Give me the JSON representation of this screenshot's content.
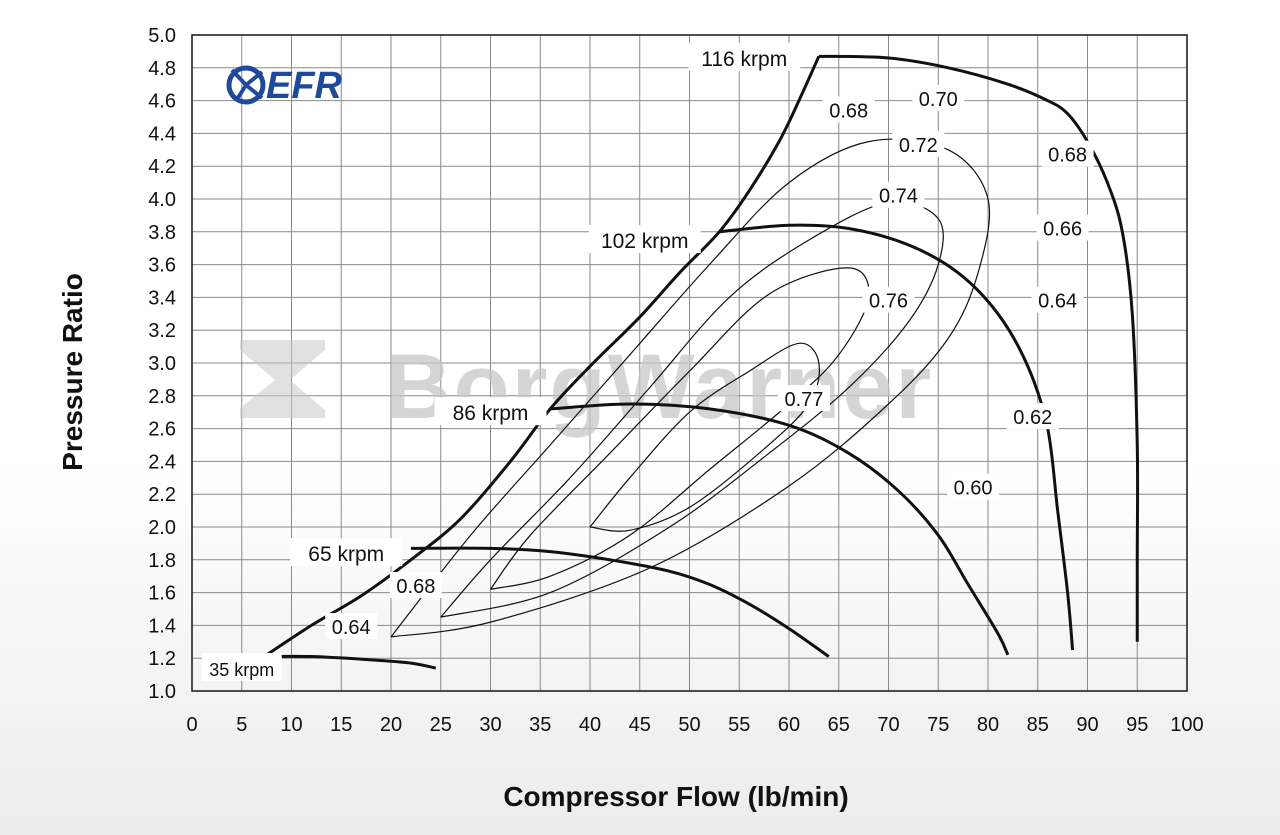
{
  "chart_data": {
    "type": "line",
    "title": "",
    "xlabel": "Compressor Flow (lb/min)",
    "ylabel": "Pressure Ratio",
    "xlim": [
      0,
      100
    ],
    "ylim": [
      1.0,
      5.0
    ],
    "x_ticks": [
      "0",
      "5",
      "10",
      "15",
      "20",
      "25",
      "30",
      "35",
      "40",
      "45",
      "50",
      "55",
      "60",
      "65",
      "70",
      "75",
      "80",
      "85",
      "90",
      "95",
      "100"
    ],
    "y_ticks": [
      "1.0",
      "1.2",
      "1.4",
      "1.6",
      "1.8",
      "2.0",
      "2.2",
      "2.4",
      "2.6",
      "2.8",
      "3.0",
      "3.2",
      "3.4",
      "3.6",
      "3.8",
      "4.0",
      "4.2",
      "4.4",
      "4.6",
      "4.8",
      "5.0"
    ],
    "grid": true,
    "logo": "EFR",
    "watermark": "BorgWarner",
    "surge_line": [
      [
        7,
        1.2
      ],
      [
        12,
        1.4
      ],
      [
        17,
        1.58
      ],
      [
        22,
        1.8
      ],
      [
        27,
        2.05
      ],
      [
        32,
        2.4
      ],
      [
        36,
        2.72
      ],
      [
        40,
        2.98
      ],
      [
        45,
        3.28
      ],
      [
        49,
        3.55
      ],
      [
        53,
        3.8
      ],
      [
        56,
        4.05
      ],
      [
        59,
        4.35
      ],
      [
        61,
        4.6
      ],
      [
        63,
        4.87
      ]
    ],
    "speed_lines": [
      {
        "name": "35 krpm",
        "label": "35 krpm",
        "points": [
          [
            7,
            1.21
          ],
          [
            12,
            1.21
          ],
          [
            18,
            1.19
          ],
          [
            22,
            1.17
          ],
          [
            24.5,
            1.14
          ]
        ]
      },
      {
        "name": "65 krpm",
        "label": "65 krpm",
        "points": [
          [
            22,
            1.87
          ],
          [
            30,
            1.87
          ],
          [
            36,
            1.85
          ],
          [
            42,
            1.8
          ],
          [
            48,
            1.73
          ],
          [
            52,
            1.65
          ],
          [
            56,
            1.53
          ],
          [
            60,
            1.38
          ],
          [
            64,
            1.21
          ]
        ]
      },
      {
        "name": "86 krpm",
        "label": "86 krpm",
        "points": [
          [
            36,
            2.72
          ],
          [
            44,
            2.75
          ],
          [
            52,
            2.72
          ],
          [
            60,
            2.62
          ],
          [
            66,
            2.45
          ],
          [
            71,
            2.22
          ],
          [
            75,
            1.95
          ],
          [
            78,
            1.65
          ],
          [
            81,
            1.35
          ],
          [
            82,
            1.22
          ]
        ]
      },
      {
        "name": "102 krpm",
        "label": "102 krpm",
        "points": [
          [
            53,
            3.8
          ],
          [
            60,
            3.84
          ],
          [
            66,
            3.82
          ],
          [
            72,
            3.72
          ],
          [
            77,
            3.55
          ],
          [
            81,
            3.3
          ],
          [
            84,
            2.98
          ],
          [
            86,
            2.6
          ],
          [
            87,
            2.1
          ],
          [
            88,
            1.6
          ],
          [
            88.5,
            1.25
          ]
        ]
      },
      {
        "name": "116 krpm",
        "label": "116 krpm",
        "points": [
          [
            63,
            4.87
          ],
          [
            70,
            4.86
          ],
          [
            76,
            4.8
          ],
          [
            82,
            4.7
          ],
          [
            86,
            4.6
          ],
          [
            88,
            4.52
          ],
          [
            90,
            4.35
          ],
          [
            92,
            4.1
          ],
          [
            93.5,
            3.8
          ],
          [
            94.5,
            3.3
          ],
          [
            95,
            2.5
          ],
          [
            95,
            1.8
          ],
          [
            95,
            1.3
          ]
        ]
      }
    ],
    "efficiency_islands": [
      {
        "label": "0.77",
        "points": [
          [
            40,
            2.0
          ],
          [
            44,
            2.3
          ],
          [
            50,
            2.7
          ],
          [
            56,
            2.95
          ],
          [
            61,
            3.12
          ],
          [
            63,
            3.0
          ],
          [
            62,
            2.75
          ],
          [
            57,
            2.45
          ],
          [
            50,
            2.12
          ],
          [
            44,
            1.98
          ],
          [
            40,
            2.0
          ]
        ]
      },
      {
        "label": "0.76",
        "points": [
          [
            30,
            1.62
          ],
          [
            34,
            1.95
          ],
          [
            42,
            2.45
          ],
          [
            50,
            2.95
          ],
          [
            58,
            3.42
          ],
          [
            66,
            3.58
          ],
          [
            68,
            3.4
          ],
          [
            65,
            3.05
          ],
          [
            60,
            2.75
          ],
          [
            52,
            2.35
          ],
          [
            44,
            1.95
          ],
          [
            36,
            1.7
          ],
          [
            30,
            1.62
          ]
        ]
      },
      {
        "label": "0.74",
        "points": [
          [
            25,
            1.45
          ],
          [
            30,
            1.8
          ],
          [
            38,
            2.3
          ],
          [
            46,
            2.85
          ],
          [
            54,
            3.4
          ],
          [
            62,
            3.75
          ],
          [
            70,
            3.98
          ],
          [
            75,
            3.88
          ],
          [
            75,
            3.6
          ],
          [
            72,
            3.25
          ],
          [
            66,
            2.85
          ],
          [
            58,
            2.45
          ],
          [
            48,
            2.0
          ],
          [
            36,
            1.6
          ],
          [
            25,
            1.45
          ]
        ]
      },
      {
        "label": "0.72",
        "points": [
          [
            20,
            1.33
          ],
          [
            28,
            1.95
          ],
          [
            36,
            2.5
          ],
          [
            44,
            3.05
          ],
          [
            52,
            3.6
          ],
          [
            60,
            4.1
          ],
          [
            68,
            4.35
          ],
          [
            76,
            4.3
          ],
          [
            80,
            4.0
          ],
          [
            79,
            3.55
          ],
          [
            76,
            3.15
          ],
          [
            70,
            2.75
          ],
          [
            60,
            2.25
          ],
          [
            46,
            1.75
          ],
          [
            30,
            1.42
          ],
          [
            20,
            1.33
          ]
        ]
      }
    ],
    "efficiency_labels": [
      {
        "text": "0.68",
        "x": 66,
        "y": 4.54
      },
      {
        "text": "0.70",
        "x": 75,
        "y": 4.61
      },
      {
        "text": "0.72",
        "x": 73,
        "y": 4.33
      },
      {
        "text": "0.74",
        "x": 71,
        "y": 4.02
      },
      {
        "text": "0.76",
        "x": 70,
        "y": 3.38
      },
      {
        "text": "0.77",
        "x": 61.5,
        "y": 2.78
      },
      {
        "text": "0.68",
        "x": 88,
        "y": 4.27
      },
      {
        "text": "0.66",
        "x": 87.5,
        "y": 3.82
      },
      {
        "text": "0.64",
        "x": 87,
        "y": 3.38
      },
      {
        "text": "0.62",
        "x": 84.5,
        "y": 2.67
      },
      {
        "text": "0.60",
        "x": 78.5,
        "y": 2.24
      },
      {
        "text": "0.68",
        "x": 22.5,
        "y": 1.64
      },
      {
        "text": "0.64",
        "x": 16,
        "y": 1.39
      }
    ],
    "speed_labels": [
      {
        "text": "116 krpm",
        "x": 55.5,
        "y": 4.86
      },
      {
        "text": "102 krpm",
        "x": 45.5,
        "y": 3.75
      },
      {
        "text": "86 krpm",
        "x": 30,
        "y": 2.7
      },
      {
        "text": "65 krpm",
        "x": 15.5,
        "y": 1.84
      },
      {
        "text": "35 krpm",
        "x": 5,
        "y": 1.14
      }
    ]
  }
}
